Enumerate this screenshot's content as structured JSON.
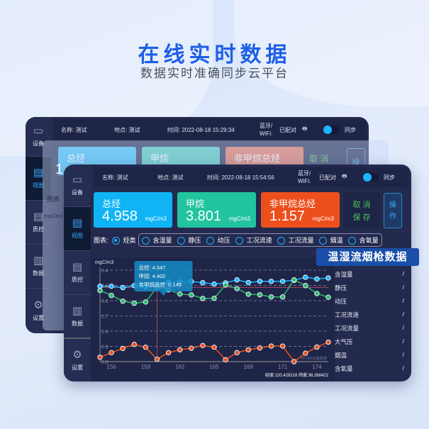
{
  "headline": "在线实时数据",
  "subheadline": "数据实时准确同步云平台",
  "banner": "温湿流烟枪数据",
  "sidebar": [
    {
      "label": "设备",
      "icon": "tablet-icon"
    },
    {
      "label": "视图",
      "icon": "window-icon"
    },
    {
      "label": "质控",
      "icon": "window-icon"
    },
    {
      "label": "数据",
      "icon": "bar-chart-icon"
    },
    {
      "label": "设置",
      "icon": "gear-icon"
    }
  ],
  "back_panel": {
    "name": "名称: 测试",
    "location": "地点: 测试",
    "time": "时间: 2022-08-18 15:29:34",
    "bt_label": "蓝牙/",
    "wifi_label": "WiFi:",
    "paired": "已配对",
    "sync": "同步",
    "cards": [
      "总烃",
      "甲烷",
      "非甲烷总烃"
    ],
    "card1_value_partial": "1",
    "cancel": "取 消",
    "op": "操",
    "chart_label": "图表",
    "unit": "mgC/m3"
  },
  "front_panel": {
    "name": "名称: 测试",
    "location": "地点: 测试",
    "time": "时间: 2022-08-18 15:54:56",
    "bt_label": "蓝牙/",
    "wifi_label": "WiFi:",
    "paired": "已配对",
    "sync": "同步",
    "cards": [
      {
        "label": "总烃",
        "value": "4.958",
        "unit": "mgC/m3",
        "color": "#10b4f5"
      },
      {
        "label": "甲烷",
        "value": "3.801",
        "unit": "mgC/m3",
        "color": "#22c4a0"
      },
      {
        "label": "非甲烷总烃",
        "value": "1.157",
        "unit": "mgC/m3",
        "color": "#ec4f1c"
      }
    ],
    "cancel": "取 消",
    "save": "保 存",
    "operate": [
      "操",
      "作"
    ],
    "chart_label": "图表:",
    "radios": [
      {
        "label": "烃类",
        "on": true
      },
      {
        "label": "含湿量"
      },
      {
        "label": "静压"
      },
      {
        "label": "动压"
      },
      {
        "label": "工况流速"
      },
      {
        "label": "工况流量"
      },
      {
        "label": "烟温"
      },
      {
        "label": "含氧量"
      }
    ],
    "params": [
      {
        "label": "含湿量",
        "value": "/"
      },
      {
        "label": "静压",
        "value": "/"
      },
      {
        "label": "动压",
        "value": "/"
      },
      {
        "label": "工况流速",
        "value": "/"
      },
      {
        "label": "工况流量",
        "value": "/"
      },
      {
        "label": "大气压",
        "value": "/"
      },
      {
        "label": "烟温",
        "value": "/"
      },
      {
        "label": "含氧量",
        "value": "/"
      }
    ],
    "watermark": "PF-300设备数据",
    "coords": "经度:120.429218  纬度:36.268422",
    "tooltip": [
      "总烃: 4.547",
      "甲烷: 4.402",
      "非甲烷总烃: 0.145"
    ]
  },
  "chart_data": {
    "type": "line",
    "ylabel": "mgC/m3",
    "ylim": [
      0,
      5.4
    ],
    "yticks": [
      "0.0",
      "0.9",
      "1.8",
      "2.7",
      "3.6",
      "4.5",
      "5.4"
    ],
    "xlim": [
      155,
      175
    ],
    "xticks": [
      "156",
      "159",
      "162",
      "165",
      "168",
      "171",
      "174"
    ],
    "grid": "horizontal-dashed",
    "reference_line": 4.38,
    "cursor_x": 160,
    "x": [
      155,
      156,
      157,
      158,
      159,
      160,
      161,
      162,
      163,
      164,
      165,
      166,
      167,
      168,
      169,
      170,
      171,
      172,
      173,
      174,
      175
    ],
    "series": [
      {
        "color": "#1ab6ff",
        "values": [
          4.45,
          4.45,
          4.37,
          4.49,
          4.4,
          4.547,
          4.7,
          4.7,
          4.73,
          4.66,
          4.58,
          4.65,
          4.83,
          4.67,
          4.74,
          4.74,
          4.74,
          4.8,
          4.98,
          4.88,
          4.94
        ]
      },
      {
        "color": "#2dbb6a",
        "values": [
          4.2,
          3.91,
          3.57,
          3.45,
          3.52,
          4.402,
          4.24,
          3.99,
          3.94,
          3.73,
          3.74,
          4.53,
          4.31,
          3.98,
          3.95,
          3.82,
          3.82,
          4.83,
          4.49,
          4.02,
          3.8
        ]
      },
      {
        "color": "#ec4f1c",
        "values": [
          0.26,
          0.53,
          0.78,
          1.02,
          0.85,
          0.145,
          0.53,
          0.7,
          0.79,
          0.95,
          0.85,
          0.11,
          0.53,
          0.7,
          0.81,
          0.92,
          0.92,
          0.0,
          0.5,
          0.86,
          1.15
        ]
      }
    ]
  }
}
